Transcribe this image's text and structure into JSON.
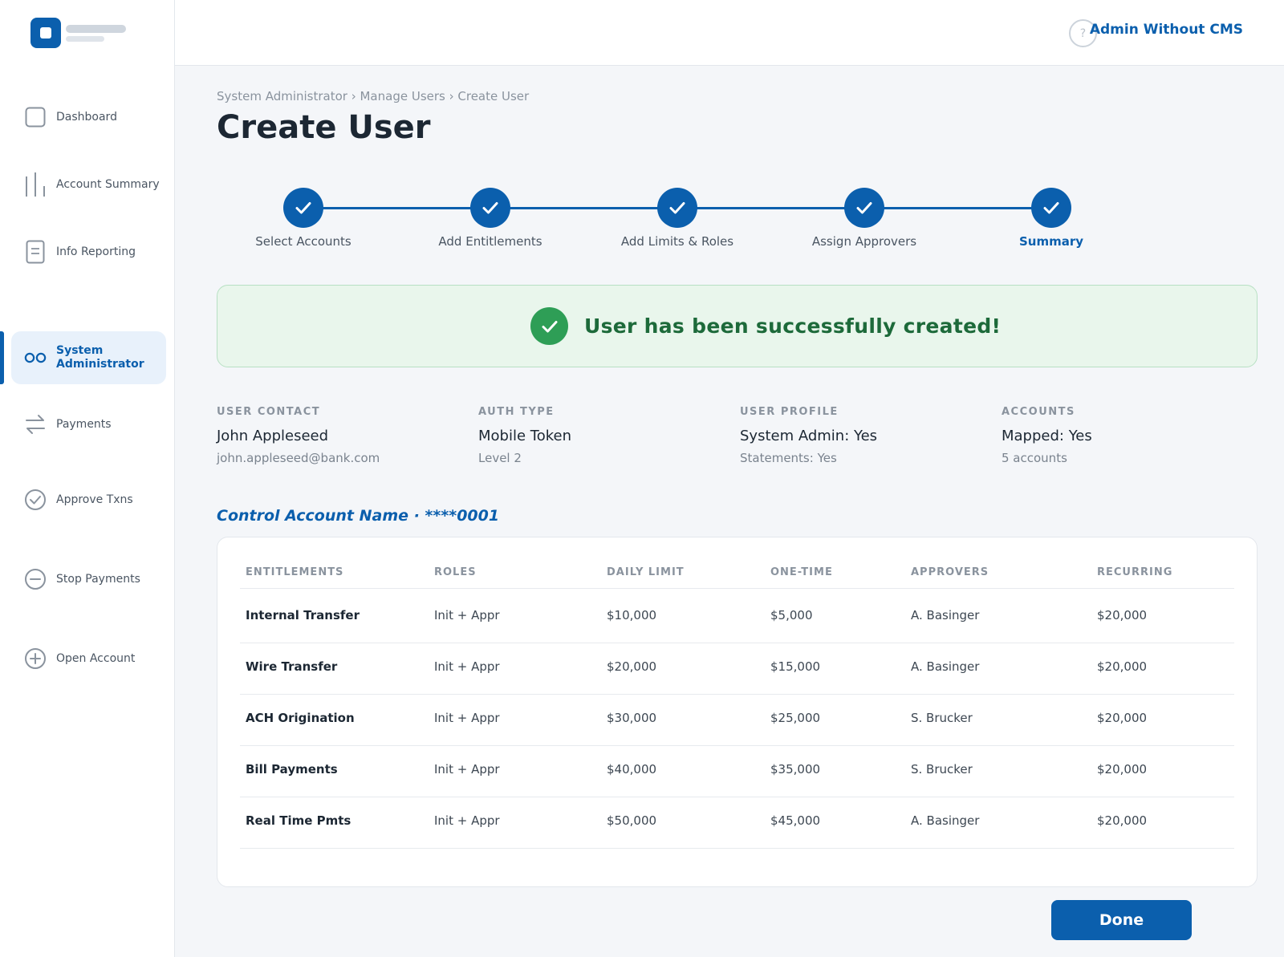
{
  "header": {
    "user_name": "Admin Without CMS",
    "help_glyph": "?"
  },
  "sidebar": {
    "items": [
      {
        "label": "Dashboard",
        "icon": "square-icon"
      },
      {
        "label": "Account Summary",
        "icon": "bar-chart-icon"
      },
      {
        "label": "Info Reporting",
        "icon": "document-icon"
      },
      {
        "label": "System Administrator",
        "icon": "users-icon",
        "active": true
      },
      {
        "label": "Payments",
        "icon": "transfer-arrows-icon"
      },
      {
        "label": "Approve Txns",
        "icon": "check-circle-icon"
      },
      {
        "label": "Stop Payments",
        "icon": "minus-circle-icon"
      },
      {
        "label": "Open Account",
        "icon": "plus-circle-icon"
      }
    ]
  },
  "main": {
    "breadcrumb": "System Administrator › Manage Users › Create User",
    "title": "Create User",
    "steps": [
      {
        "label": "Select Accounts",
        "done": true
      },
      {
        "label": "Add Entitlements",
        "done": true
      },
      {
        "label": "Add Limits & Roles",
        "done": true
      },
      {
        "label": "Assign Approvers",
        "done": true
      },
      {
        "label": "Summary",
        "done": true,
        "current": true
      }
    ],
    "banner": "User has been successfully created!",
    "info": [
      {
        "label": "USER CONTACT",
        "main": "John Appleseed",
        "sub": "john.appleseed@bank.com"
      },
      {
        "label": "AUTH TYPE",
        "main": "Mobile Token",
        "sub": "Level 2"
      },
      {
        "label": "USER PROFILE",
        "main": "System Admin: Yes",
        "sub": "Statements: Yes"
      },
      {
        "label": "ACCOUNTS",
        "main": "Mapped: Yes",
        "sub": "5 accounts"
      }
    ],
    "account_title": "Control Account Name · ****0001",
    "table": {
      "headers": [
        "ENTITLEMENTS",
        "ROLES",
        "DAILY LIMIT",
        "ONE-TIME",
        "APPROVERS",
        "RECURRING"
      ],
      "rows": [
        [
          "Internal Transfer",
          "Init + Appr",
          "$10,000",
          "$5,000",
          "A. Basinger",
          "$20,000"
        ],
        [
          "Wire Transfer",
          "Init + Appr",
          "$20,000",
          "$15,000",
          "A. Basinger",
          "$20,000"
        ],
        [
          "ACH Origination",
          "Init + Appr",
          "$30,000",
          "$25,000",
          "S. Brucker",
          "$20,000"
        ],
        [
          "Bill Payments",
          "Init + Appr",
          "$40,000",
          "$35,000",
          "S. Brucker",
          "$20,000"
        ],
        [
          "Real Time Pmts",
          "Init + Appr",
          "$50,000",
          "$45,000",
          "A. Basinger",
          "$20,000"
        ]
      ]
    },
    "done_label": "Done"
  },
  "colors": {
    "accent": "#0b5fad",
    "success": "#2e9e56",
    "success_text": "#1d6a3a"
  }
}
